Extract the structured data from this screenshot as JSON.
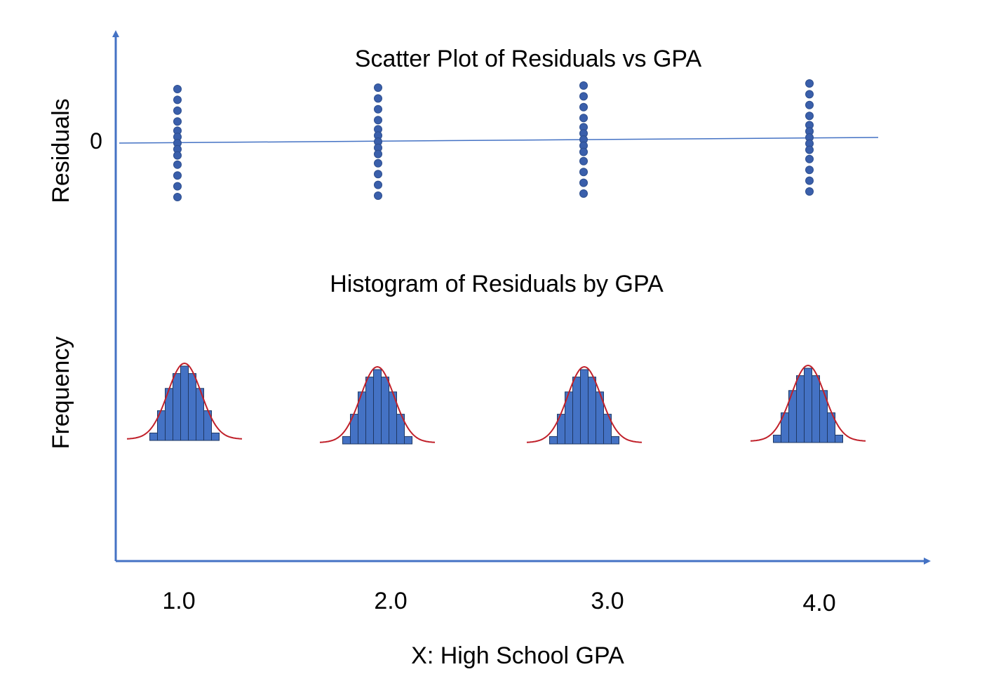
{
  "titles": {
    "scatter": "Scatter Plot of Residuals vs GPA",
    "histogram": "Histogram of Residuals by GPA"
  },
  "axes": {
    "y_upper_label": "Residuals",
    "y_lower_label": "Frequency",
    "x_label": "X: High School GPA",
    "zero_label": "0"
  },
  "colors": {
    "axis": "#4472c4",
    "point": "#3a5fab",
    "point_edge": "#2e4f8f",
    "bar_fill": "#4472c4",
    "bar_edge": "#1f3864",
    "curve": "#c0202a",
    "reference_line": "#4472c4"
  },
  "chart_data": [
    {
      "type": "scatter",
      "title": "Scatter Plot of Residuals vs GPA",
      "ylabel": "Residuals",
      "xlabel": "X: High School GPA",
      "x_ticks": [
        "1.0",
        "2.0",
        "3.0",
        "4.0"
      ],
      "reference_line_y": 0,
      "series": [
        {
          "x": 1.0,
          "residuals": [
            3.5,
            2.8,
            2.1,
            1.4,
            0.8,
            0.4,
            0.0,
            -0.4,
            -0.8,
            -1.4,
            -2.1,
            -2.8,
            -3.5
          ]
        },
        {
          "x": 2.0,
          "residuals": [
            3.5,
            2.8,
            2.1,
            1.4,
            0.8,
            0.4,
            0.0,
            -0.4,
            -0.8,
            -1.4,
            -2.1,
            -2.8,
            -3.5
          ]
        },
        {
          "x": 3.0,
          "residuals": [
            3.5,
            2.8,
            2.1,
            1.4,
            0.8,
            0.4,
            0.0,
            -0.4,
            -0.8,
            -1.4,
            -2.1,
            -2.8,
            -3.5
          ]
        },
        {
          "x": 4.0,
          "residuals": [
            3.5,
            2.8,
            2.1,
            1.4,
            0.8,
            0.4,
            0.0,
            -0.4,
            -0.8,
            -1.4,
            -2.1,
            -2.8,
            -3.5
          ]
        }
      ]
    },
    {
      "type": "bar",
      "title": "Histogram of Residuals by GPA",
      "ylabel": "Frequency",
      "xlabel": "X: High School GPA",
      "x_ticks": [
        "1.0",
        "2.0",
        "3.0",
        "4.0"
      ],
      "normal_curve_overlay": true,
      "groups": [
        {
          "x": 1.0,
          "frequencies": [
            1,
            4,
            7,
            9,
            10,
            9,
            7,
            4,
            1
          ]
        },
        {
          "x": 2.0,
          "frequencies": [
            1,
            4,
            7,
            9,
            10,
            9,
            7,
            4,
            1
          ]
        },
        {
          "x": 3.0,
          "frequencies": [
            1,
            4,
            7,
            9,
            10,
            9,
            7,
            4,
            1
          ]
        },
        {
          "x": 4.0,
          "frequencies": [
            1,
            4,
            7,
            9,
            10,
            9,
            7,
            4,
            1
          ]
        }
      ]
    }
  ]
}
